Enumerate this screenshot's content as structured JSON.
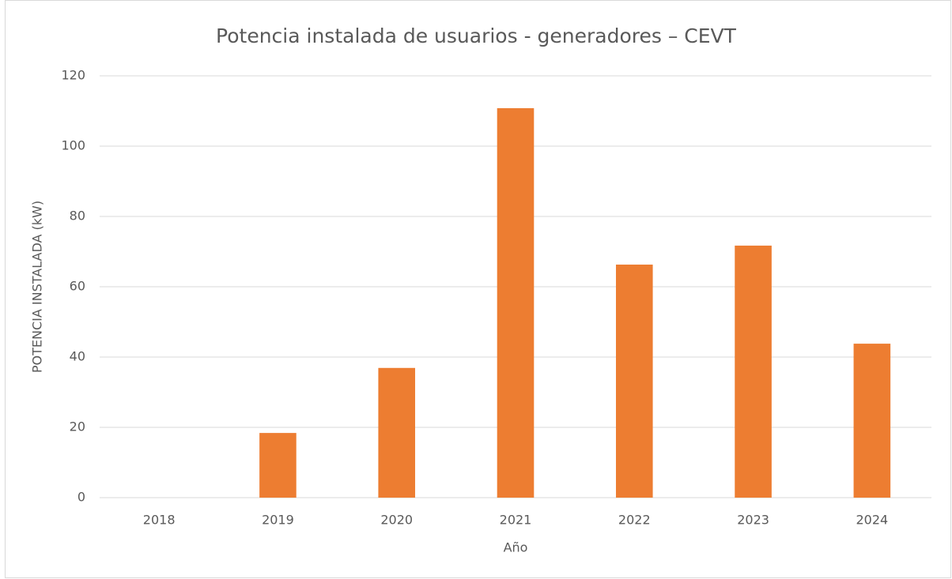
{
  "chart_data": {
    "type": "bar",
    "title": "Potencia instalada de usuarios  -  generadores – CEVT",
    "x_label": "Año",
    "y_label": "POTENCIA INSTALADA (kW)",
    "categories": [
      "2018",
      "2019",
      "2020",
      "2021",
      "2022",
      "2023",
      "2024"
    ],
    "values": [
      0,
      18.4,
      36.9,
      110.8,
      66.3,
      71.7,
      43.8
    ],
    "color": "#ed7d31",
    "ylim": [
      0,
      120
    ],
    "yticks": [
      0,
      20,
      40,
      60,
      80,
      100,
      120
    ],
    "grid": true
  }
}
